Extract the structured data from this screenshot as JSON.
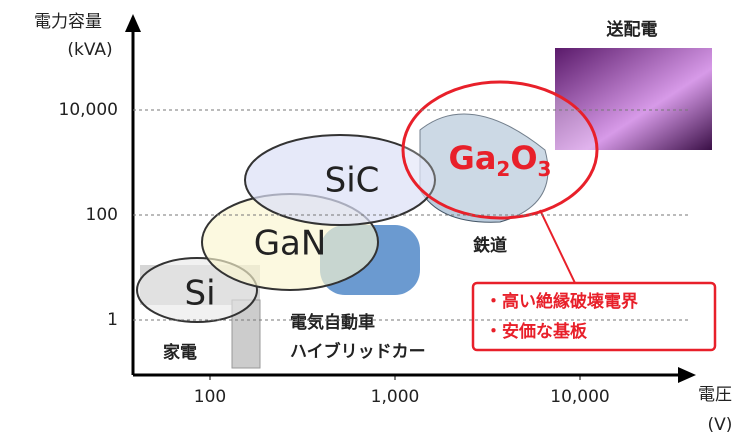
{
  "axes": {
    "y_title": [
      "電力容量",
      "(kVA)"
    ],
    "x_title": [
      "電圧",
      "(V)"
    ],
    "scale": "log",
    "yticks": [
      {
        "value": 10000,
        "label": "10,000"
      },
      {
        "value": 100,
        "label": "100"
      },
      {
        "value": 1,
        "label": "1"
      }
    ],
    "xticks": [
      {
        "value": 100,
        "label": "100"
      },
      {
        "value": 1000,
        "label": "1,000"
      },
      {
        "value": 10000,
        "label": "10,000"
      }
    ]
  },
  "regions": [
    {
      "label": "Si"
    },
    {
      "label": "GaN"
    },
    {
      "label": "SiC"
    },
    {
      "label_parts": [
        "Ga",
        "2",
        "O",
        "3"
      ]
    }
  ],
  "applications": [
    "家電",
    "電気自動車",
    "ハイブリッドカー",
    "鉄道",
    "送配電"
  ],
  "callout": [
    "・高い絶縁破壊電界",
    "・安価な基板"
  ]
}
